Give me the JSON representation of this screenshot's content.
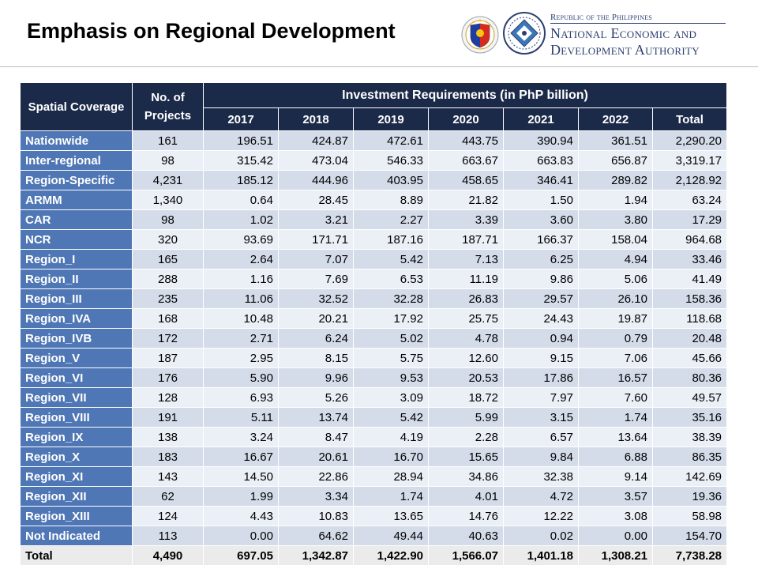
{
  "header": {
    "title": "Emphasis on Regional Development",
    "agency_line1": "Republic of the Philippines",
    "agency_line2": "National Economic and",
    "agency_line3": "Development Authority"
  },
  "table": {
    "col_spatial": "Spatial Coverage",
    "col_projects": "No. of Projects",
    "col_investment": "Investment Requirements (in PhP billion)",
    "years": [
      "2017",
      "2018",
      "2019",
      "2020",
      "2021",
      "2022",
      "Total"
    ],
    "rows": [
      {
        "name": "Nationwide",
        "projects": "161",
        "values": [
          "196.51",
          "424.87",
          "472.61",
          "443.75",
          "390.94",
          "361.51",
          "2,290.20"
        ]
      },
      {
        "name": "Inter-regional",
        "projects": "98",
        "values": [
          "315.42",
          "473.04",
          "546.33",
          "663.67",
          "663.83",
          "656.87",
          "3,319.17"
        ]
      },
      {
        "name": "Region-Specific",
        "projects": "4,231",
        "values": [
          "185.12",
          "444.96",
          "403.95",
          "458.65",
          "346.41",
          "289.82",
          "2,128.92"
        ]
      },
      {
        "name": "ARMM",
        "projects": "1,340",
        "values": [
          "0.64",
          "28.45",
          "8.89",
          "21.82",
          "1.50",
          "1.94",
          "63.24"
        ]
      },
      {
        "name": "CAR",
        "projects": "98",
        "values": [
          "1.02",
          "3.21",
          "2.27",
          "3.39",
          "3.60",
          "3.80",
          "17.29"
        ]
      },
      {
        "name": "NCR",
        "projects": "320",
        "values": [
          "93.69",
          "171.71",
          "187.16",
          "187.71",
          "166.37",
          "158.04",
          "964.68"
        ]
      },
      {
        "name": "Region_I",
        "projects": "165",
        "values": [
          "2.64",
          "7.07",
          "5.42",
          "7.13",
          "6.25",
          "4.94",
          "33.46"
        ]
      },
      {
        "name": "Region_II",
        "projects": "288",
        "values": [
          "1.16",
          "7.69",
          "6.53",
          "11.19",
          "9.86",
          "5.06",
          "41.49"
        ]
      },
      {
        "name": "Region_III",
        "projects": "235",
        "values": [
          "11.06",
          "32.52",
          "32.28",
          "26.83",
          "29.57",
          "26.10",
          "158.36"
        ]
      },
      {
        "name": "Region_IVA",
        "projects": "168",
        "values": [
          "10.48",
          "20.21",
          "17.92",
          "25.75",
          "24.43",
          "19.87",
          "118.68"
        ]
      },
      {
        "name": "Region_IVB",
        "projects": "172",
        "values": [
          "2.71",
          "6.24",
          "5.02",
          "4.78",
          "0.94",
          "0.79",
          "20.48"
        ]
      },
      {
        "name": "Region_V",
        "projects": "187",
        "values": [
          "2.95",
          "8.15",
          "5.75",
          "12.60",
          "9.15",
          "7.06",
          "45.66"
        ]
      },
      {
        "name": "Region_VI",
        "projects": "176",
        "values": [
          "5.90",
          "9.96",
          "9.53",
          "20.53",
          "17.86",
          "16.57",
          "80.36"
        ]
      },
      {
        "name": "Region_VII",
        "projects": "128",
        "values": [
          "6.93",
          "5.26",
          "3.09",
          "18.72",
          "7.97",
          "7.60",
          "49.57"
        ]
      },
      {
        "name": "Region_VIII",
        "projects": "191",
        "values": [
          "5.11",
          "13.74",
          "5.42",
          "5.99",
          "3.15",
          "1.74",
          "35.16"
        ]
      },
      {
        "name": "Region_IX",
        "projects": "138",
        "values": [
          "3.24",
          "8.47",
          "4.19",
          "2.28",
          "6.57",
          "13.64",
          "38.39"
        ]
      },
      {
        "name": "Region_X",
        "projects": "183",
        "values": [
          "16.67",
          "20.61",
          "16.70",
          "15.65",
          "9.84",
          "6.88",
          "86.35"
        ]
      },
      {
        "name": "Region_XI",
        "projects": "143",
        "values": [
          "14.50",
          "22.86",
          "28.94",
          "34.86",
          "32.38",
          "9.14",
          "142.69"
        ]
      },
      {
        "name": "Region_XII",
        "projects": "62",
        "values": [
          "1.99",
          "3.34",
          "1.74",
          "4.01",
          "4.72",
          "3.57",
          "19.36"
        ]
      },
      {
        "name": "Region_XIII",
        "projects": "124",
        "values": [
          "4.43",
          "10.83",
          "13.65",
          "14.76",
          "12.22",
          "3.08",
          "58.98"
        ]
      },
      {
        "name": "Not Indicated",
        "projects": "113",
        "values": [
          "0.00",
          "64.62",
          "49.44",
          "40.63",
          "0.02",
          "0.00",
          "154.70"
        ]
      }
    ],
    "total": {
      "name": "Total",
      "projects": "4,490",
      "values": [
        "697.05",
        "1,342.87",
        "1,422.90",
        "1,566.07",
        "1,401.18",
        "1,308.21",
        "7,738.28"
      ]
    }
  },
  "colors": {
    "header_dark": "#1c2a4a",
    "label_blue": "#4f76b5",
    "row_odd": "#d4dcea",
    "row_even": "#ebeff6",
    "total_row": "#ebebeb",
    "neda_text": "#2b3f70"
  },
  "icons": [
    "philippine-seal-icon",
    "neda-logo-icon"
  ]
}
